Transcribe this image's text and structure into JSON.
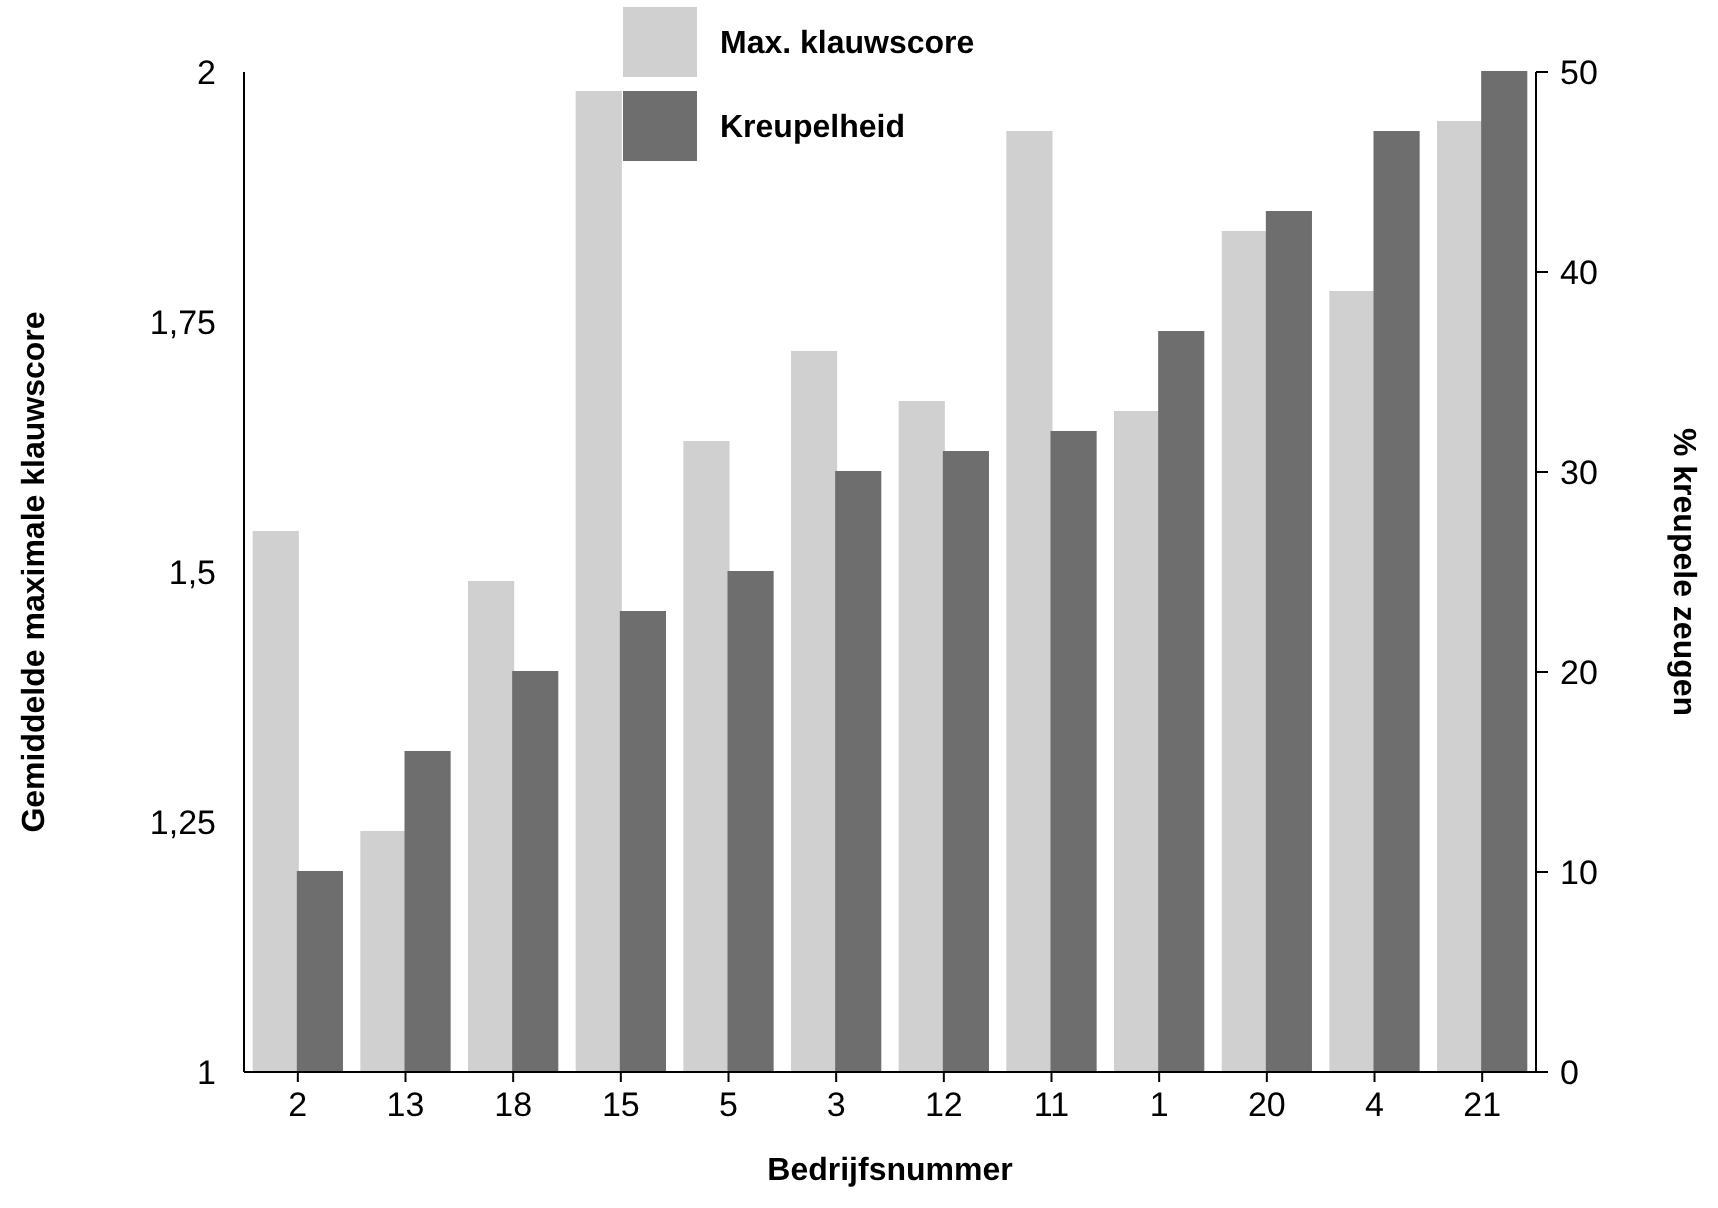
{
  "chart_data": {
    "type": "bar",
    "xlabel": "Bedrijfsnummer",
    "ylabel": "Gemiddelde maximale klauwscore",
    "y2label": "% kreupele zeugen",
    "categories": [
      "2",
      "13",
      "18",
      "15",
      "5",
      "3",
      "12",
      "11",
      "1",
      "20",
      "4",
      "21"
    ],
    "series": [
      {
        "name": "Max. klauwscore",
        "color": "#d0d0d0",
        "values": [
          1.54,
          1.24,
          1.49,
          1.98,
          1.63,
          1.72,
          1.67,
          1.94,
          1.66,
          1.84,
          1.78,
          1.95
        ]
      },
      {
        "name": "Kreupelheid",
        "color": "#6e6e6e",
        "axis": "y2",
        "values": [
          10,
          16,
          20,
          23,
          25,
          30,
          31,
          32,
          37,
          43,
          47,
          50
        ]
      }
    ],
    "ylim": [
      1,
      2
    ],
    "yticks": [
      1,
      {
        "value": 1.25,
        "label": "1,25"
      },
      {
        "value": 1.5,
        "label": "1,5"
      },
      {
        "value": 1.75,
        "label": "1,75"
      },
      2
    ],
    "y2lim": [
      0,
      50
    ],
    "y2ticks": [
      0,
      10,
      20,
      30,
      40,
      50
    ],
    "legend": "top",
    "grid": false
  }
}
